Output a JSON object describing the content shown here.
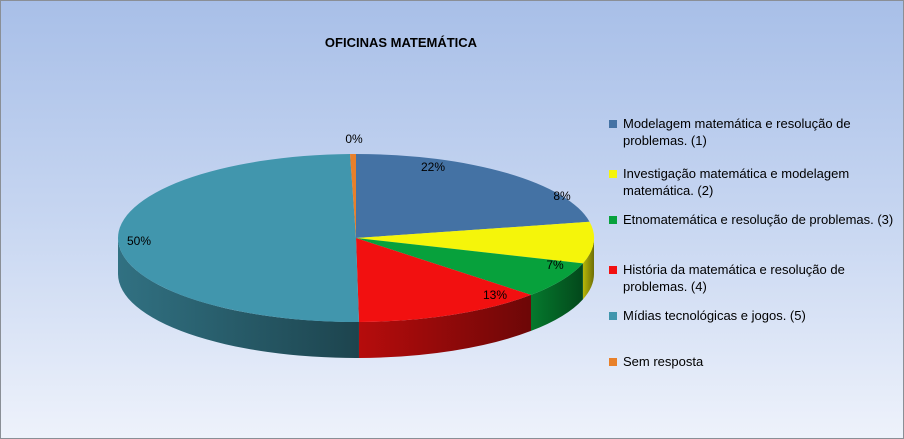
{
  "chart_data": {
    "type": "pie",
    "title": "OFICINAS MATEMÁTICA",
    "legend_position": "right",
    "slices": [
      {
        "label": "Modelagem matemática e resolução de problemas. (1)",
        "value": 22,
        "value_label": "22%",
        "color": "#4472a4"
      },
      {
        "label": "Investigação matemática e modelagem matemática. (2)",
        "value": 8,
        "value_label": "8%",
        "color": "#f5f50a"
      },
      {
        "label": "Etnomatemática e resolução de problemas. (3)",
        "value": 7,
        "value_label": "7%",
        "color": "#07a13c"
      },
      {
        "label": "História da matemática e resolução de problemas. (4)",
        "value": 13,
        "value_label": "13%",
        "color": "#f21010"
      },
      {
        "label": "Mídias tecnológicas e jogos. (5)",
        "value": 50,
        "value_label": "50%",
        "color": "#4196ad"
      },
      {
        "label": "Sem resposta",
        "value": 0.4,
        "value_label": "0%",
        "color": "#e8802a"
      }
    ]
  }
}
